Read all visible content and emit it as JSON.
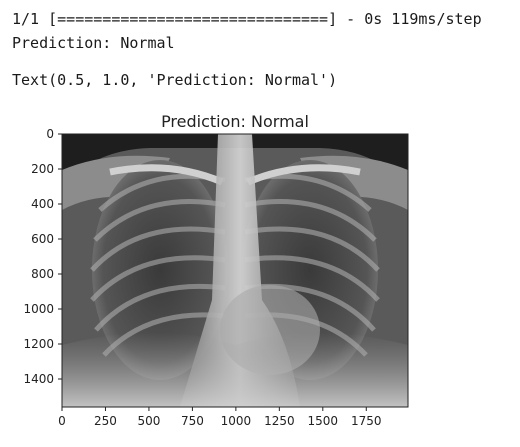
{
  "output": {
    "progress_prefix": "1/1 [",
    "progress_bar": "==============================",
    "progress_suffix": "] - 0s 119ms/step",
    "prediction_text": "Prediction: Normal",
    "text_repr": "Text(0.5, 1.0, 'Prediction: Normal')"
  },
  "chart_data": {
    "type": "image",
    "title": "Prediction: Normal",
    "xlabel": "",
    "ylabel": "",
    "xticks": [
      0,
      250,
      500,
      750,
      1000,
      1250,
      1500,
      1750
    ],
    "yticks": [
      0,
      200,
      400,
      600,
      800,
      1000,
      1200,
      1400
    ],
    "xlim": [
      0,
      1990
    ],
    "ylim": [
      1560,
      0
    ],
    "image_description_icon": "chest-xray-image",
    "colors": {
      "image_bg": "#2a2a2a",
      "axis": "#222222"
    }
  }
}
